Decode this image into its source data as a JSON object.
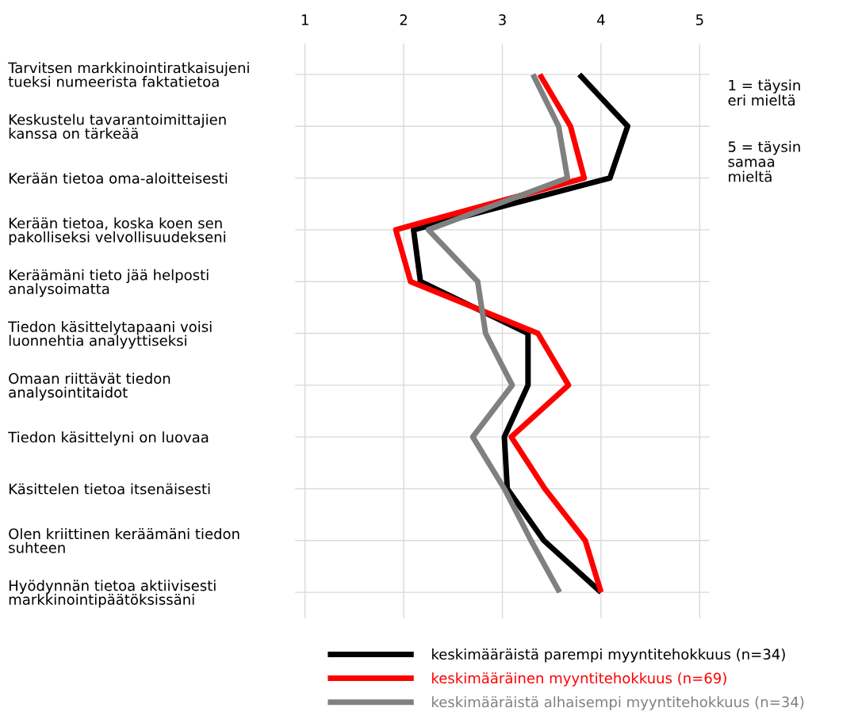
{
  "chart_data": {
    "type": "line",
    "orientation": "horizontal",
    "categories": [
      "Tarvitsen markkinointiratkaisujeni\ntueksi numeerista faktatietoa",
      "Keskustelu tavarantoimittajien\nkanssa on tärkeää",
      "Kerään tietoa oma-aloitteisesti",
      "Kerään tietoa, koska koen sen\npakolliseksi velvollisuudekseni",
      "Keräämäni tieto jää helposti\nanalysoimatta",
      "Tiedon käsittelytapaani voisi\nluonnehtia analyyttiseksi",
      "Omaan riittävät tiedon\nanalysointitaidot",
      "Tiedon käsittelyni on luovaa",
      "Käsittelen tietoa itsenäisesti",
      "Olen kriittinen keräämäni tiedon\nsuhteen",
      "Hyödynnän tietoa aktiivisesti\nmarkkinointipäätöksissäni"
    ],
    "series": [
      {
        "name": "keskimääräistä parempi myyntitehokkuus (n=34)",
        "color": "#000000",
        "values": [
          3.78,
          4.27,
          4.09,
          2.1,
          2.17,
          3.26,
          3.26,
          3.02,
          3.05,
          3.42,
          4.0
        ]
      },
      {
        "name": "keskimääräinen myyntitehokkuus (n=69)",
        "color": "#ff0000",
        "values": [
          3.38,
          3.69,
          3.83,
          1.92,
          2.07,
          3.36,
          3.67,
          3.09,
          3.43,
          3.84,
          4.0
        ]
      },
      {
        "name": "keskimääräistä alhaisempi myyntitehokkuus (n=34)",
        "color": "#808080",
        "values": [
          3.31,
          3.57,
          3.66,
          2.25,
          2.75,
          2.83,
          3.1,
          2.7,
          3.02,
          3.29,
          3.58
        ]
      }
    ],
    "xlim": [
      0.9,
      5.1
    ],
    "xticks": [
      1,
      2,
      3,
      4,
      5
    ],
    "annotations": [
      "1 = täysin\neri mieltä",
      "5 = täysin\nsamaa\nmieltä"
    ],
    "grid": true,
    "legend": "bottom",
    "marker": "none",
    "line_style": "solid"
  }
}
